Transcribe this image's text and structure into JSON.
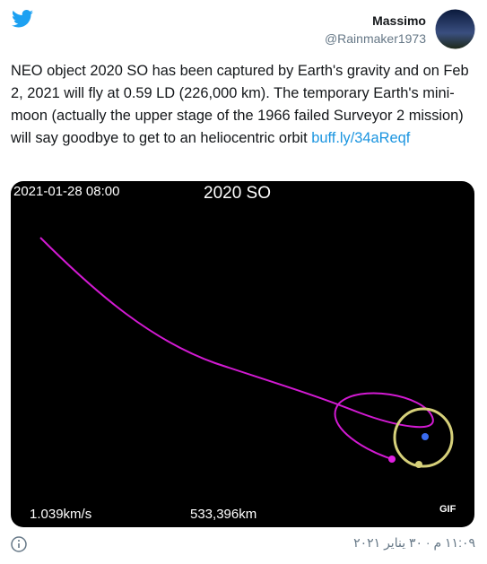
{
  "author": {
    "name": "Massimo",
    "handle": "@Rainmaker1973"
  },
  "tweet": {
    "text": "NEO object 2020 SO has been captured by Earth's gravity and on Feb 2, 2021 will fly at 0.59 LD (226,000 km). The temporary Earth's mini-moon (actually the upper stage of the 1966 failed Surveyor 2 mission) will say goodbye to get to an heliocentric orbit",
    "link": "buff.ly/34aReqf"
  },
  "media": {
    "timestamp": "2021-01-28 08:00",
    "title": "2020 SO",
    "speed": "1.039km/s",
    "distance": "533,396km",
    "badge": "GIF"
  },
  "footer": {
    "time": "١١:٠٩ م · ٣٠ يناير ٢٠٢١"
  }
}
